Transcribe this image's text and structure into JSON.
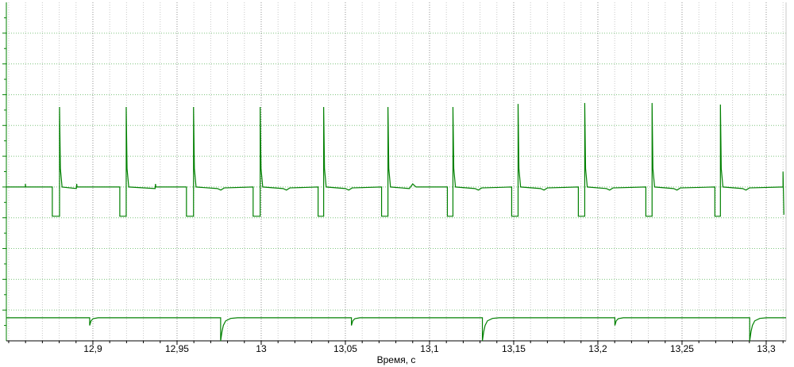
{
  "chart_data": {
    "type": "line",
    "xlabel": "Время, с",
    "xlim": [
      12.8486,
      13.3118
    ],
    "ylim": [
      0,
      11
    ],
    "xticks": [
      {
        "value": 12.9,
        "label": "12,9"
      },
      {
        "value": 12.95,
        "label": "12,95"
      },
      13,
      {
        "value": 13.05,
        "label": "13,05"
      },
      {
        "value": 13.1,
        "label": "13,1"
      },
      {
        "value": 13.15,
        "label": "13,15"
      },
      {
        "value": 13.2,
        "label": "13,2"
      },
      {
        "value": 13.25,
        "label": "13,25"
      },
      {
        "value": 13.3,
        "label": "13,3"
      }
    ],
    "xminorticks": [
      12.85,
      12.86,
      12.87,
      12.88,
      12.89,
      12.91,
      12.92,
      12.93,
      12.94,
      12.96,
      12.97,
      12.98,
      12.99,
      13.01,
      13.02,
      13.03,
      13.04,
      13.06,
      13.07,
      13.08,
      13.09,
      13.11,
      13.12,
      13.13,
      13.14,
      13.16,
      13.17,
      13.18,
      13.19,
      13.21,
      13.22,
      13.23,
      13.24,
      13.26,
      13.27,
      13.28,
      13.29,
      13.31
    ],
    "yticks": [
      1,
      2,
      3,
      4,
      5,
      6,
      7,
      8,
      9,
      10
    ],
    "yminorticks": [
      0.5,
      1.5,
      2.5,
      3.5,
      4.5,
      5.5,
      6.5,
      7.5,
      8.5,
      9.5,
      10.5
    ],
    "grid": true,
    "series": [
      {
        "color": "#008000",
        "x": [
          12.8486,
          12.8599,
          12.8599,
          12.8601,
          12.8759,
          12.8759,
          12.8802,
          12.8802,
          12.8807,
          12.8817,
          12.8902,
          12.8904,
          12.8906,
          12.916,
          12.916,
          12.9198,
          12.9198,
          12.9203,
          12.9213,
          12.937,
          12.9372,
          12.9374,
          12.9556,
          12.9556,
          12.9598,
          12.9598,
          12.9603,
          12.9613,
          12.974,
          12.976,
          12.978,
          12.9952,
          12.9952,
          12.9994,
          12.9994,
          12.9999,
          13.0009,
          13.013,
          13.015,
          13.017,
          13.0338,
          13.0338,
          13.0371,
          13.0371,
          13.0376,
          13.0386,
          13.05,
          13.052,
          13.054,
          13.0715,
          13.0715,
          13.0753,
          13.0753,
          13.0758,
          13.0768,
          13.088,
          13.09,
          13.092,
          13.1106,
          13.1106,
          13.1139,
          13.1139,
          13.1144,
          13.1154,
          13.127,
          13.129,
          13.131,
          13.1488,
          13.1488,
          13.1526,
          13.1526,
          13.1531,
          13.1541,
          13.166,
          13.168,
          13.17,
          13.1884,
          13.1884,
          13.1922,
          13.1922,
          13.1927,
          13.1937,
          13.205,
          13.207,
          13.209,
          13.2285,
          13.2285,
          13.2322,
          13.2322,
          13.2327,
          13.2337,
          13.245,
          13.247,
          13.249,
          13.2695,
          13.2695,
          13.2728,
          13.2728,
          13.2733,
          13.2743,
          13.286,
          13.288,
          13.29,
          13.31,
          13.31,
          13.3105
        ],
        "values": [
          5.0,
          5.0,
          5.1,
          5.0,
          5.0,
          4.05,
          4.05,
          7.6,
          5.6,
          5.0,
          4.95,
          5.1,
          5.0,
          5.0,
          4.05,
          4.05,
          7.6,
          5.6,
          5.0,
          4.95,
          5.1,
          5.0,
          5.0,
          4.05,
          4.05,
          7.6,
          5.6,
          5.0,
          4.95,
          4.9,
          4.97,
          5.0,
          4.05,
          4.05,
          7.6,
          5.6,
          5.0,
          4.95,
          4.9,
          4.97,
          5.0,
          4.05,
          4.05,
          7.6,
          5.6,
          5.0,
          4.95,
          4.9,
          4.97,
          5.0,
          4.05,
          4.05,
          7.6,
          5.6,
          5.0,
          4.95,
          5.1,
          5.0,
          5.0,
          4.05,
          4.05,
          7.6,
          5.6,
          5.0,
          4.95,
          4.9,
          4.97,
          5.0,
          4.05,
          4.05,
          7.7,
          5.6,
          5.0,
          4.95,
          4.9,
          4.97,
          5.0,
          4.05,
          4.05,
          7.73,
          5.6,
          5.0,
          4.95,
          4.9,
          4.97,
          5.0,
          4.05,
          4.05,
          7.73,
          5.6,
          5.0,
          4.95,
          4.9,
          4.97,
          5.0,
          4.05,
          4.05,
          7.68,
          5.6,
          5.0,
          4.95,
          4.9,
          4.97,
          5.0,
          5.5,
          4.1
        ]
      },
      {
        "color": "#008000",
        "x": [
          12.8486,
          12.8981,
          12.8981,
          12.8989,
          12.9001,
          12.9031,
          12.9759,
          12.9759,
          12.9767,
          12.9775,
          12.9789,
          12.9819,
          12.9859,
          13.0536,
          13.0536,
          13.0544,
          13.0556,
          13.0586,
          13.1314,
          13.1314,
          13.1322,
          13.133,
          13.1344,
          13.1374,
          13.1414,
          13.2101,
          13.2101,
          13.2109,
          13.2121,
          13.2151,
          13.2902,
          13.2902,
          13.291,
          13.2918,
          13.2932,
          13.2962,
          13.3002,
          13.3118
        ],
        "values": [
          0.75,
          0.75,
          0.5,
          0.65,
          0.72,
          0.75,
          0.75,
          0,
          0.3,
          0.5,
          0.65,
          0.73,
          0.75,
          0.75,
          0.5,
          0.65,
          0.72,
          0.75,
          0.75,
          0,
          0.3,
          0.5,
          0.65,
          0.73,
          0.75,
          0.75,
          0.5,
          0.65,
          0.72,
          0.75,
          0.75,
          0,
          0.3,
          0.5,
          0.65,
          0.73,
          0.75,
          0.75
        ]
      }
    ]
  }
}
